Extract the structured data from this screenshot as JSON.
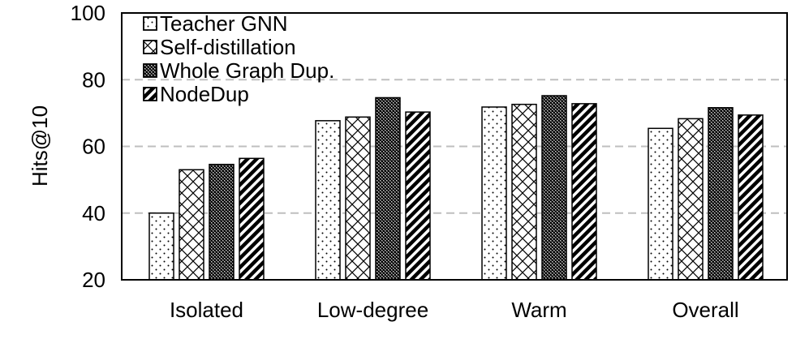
{
  "chart_data": {
    "type": "bar",
    "title": "",
    "xlabel": "",
    "ylabel": "Hits@10",
    "ylim": [
      20,
      100
    ],
    "yticks": [
      20,
      40,
      60,
      80,
      100
    ],
    "grid": "horizontal-dashed",
    "legend_position": "top-left",
    "categories": [
      "Isolated",
      "Low-degree",
      "Warm",
      "Overall"
    ],
    "series": [
      {
        "name": "Teacher GNN",
        "pattern": "dots",
        "values": [
          40.0,
          67.7,
          71.8,
          65.4
        ]
      },
      {
        "name": "Self-distillation",
        "pattern": "crosshatch",
        "values": [
          53.0,
          68.8,
          72.6,
          68.3
        ]
      },
      {
        "name": "Whole Graph Dup.",
        "pattern": "dense-checker",
        "values": [
          54.6,
          74.6,
          75.2,
          71.6
        ]
      },
      {
        "name": "NodeDup",
        "pattern": "diagonal-stripes",
        "values": [
          56.4,
          70.3,
          72.8,
          69.4
        ]
      }
    ],
    "colors": {
      "ink": "#000000",
      "grid": "#bfbfbf",
      "background": "#ffffff"
    }
  }
}
